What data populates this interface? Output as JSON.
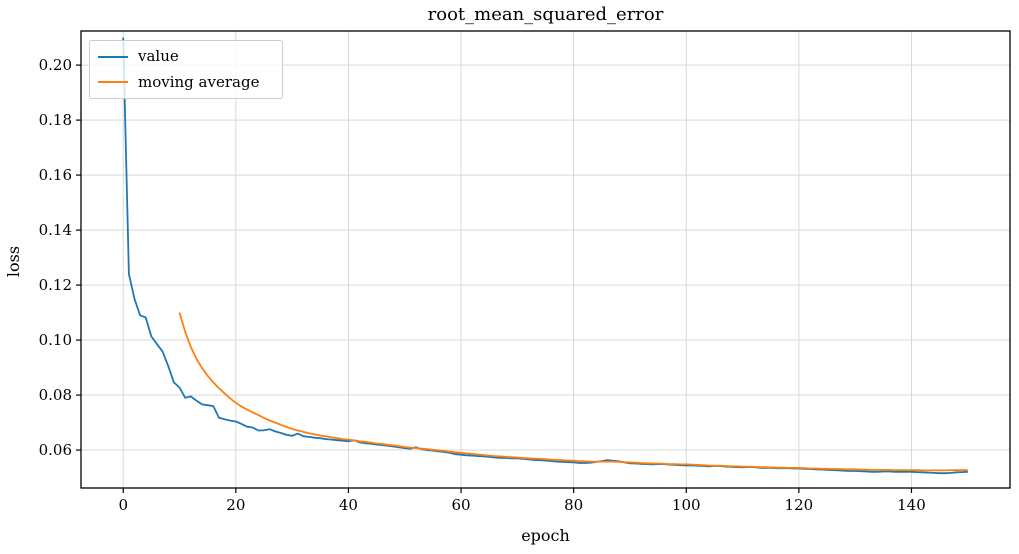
{
  "chart_data": {
    "type": "line",
    "title": "root_mean_squared_error",
    "xlabel": "epoch",
    "ylabel": "loss",
    "xlim": [
      -7.5,
      157.5
    ],
    "ylim": [
      0.0462,
      0.2124
    ],
    "x_ticks": [
      0,
      20,
      40,
      60,
      80,
      100,
      120,
      140
    ],
    "y_ticks": [
      0.06,
      0.08,
      0.1,
      0.12,
      0.14,
      0.16,
      0.18,
      0.2
    ],
    "grid": true,
    "grid_color": "#d9d9d9",
    "legend_position": "upper-left",
    "series": [
      {
        "name": "value",
        "color": "#1f77b4",
        "x0": 0,
        "dx": 1,
        "y": [
          0.21,
          0.124,
          0.115,
          0.109,
          0.1082,
          0.1013,
          0.0985,
          0.0958,
          0.0905,
          0.0846,
          0.0827,
          0.079,
          0.0795,
          0.078,
          0.0766,
          0.0763,
          0.076,
          0.0718,
          0.0712,
          0.0707,
          0.0704,
          0.0695,
          0.0685,
          0.0682,
          0.0671,
          0.0672,
          0.0676,
          0.0668,
          0.0662,
          0.0655,
          0.0652,
          0.066,
          0.065,
          0.0648,
          0.0645,
          0.0643,
          0.064,
          0.0638,
          0.0636,
          0.0634,
          0.0632,
          0.0636,
          0.0628,
          0.0625,
          0.0623,
          0.062,
          0.0618,
          0.0616,
          0.0613,
          0.061,
          0.0607,
          0.0605,
          0.061,
          0.0603,
          0.06,
          0.0598,
          0.0595,
          0.0593,
          0.059,
          0.0585,
          0.0583,
          0.0581,
          0.058,
          0.0578,
          0.0577,
          0.0575,
          0.0573,
          0.0572,
          0.0571,
          0.057,
          0.057,
          0.0568,
          0.0566,
          0.0564,
          0.0563,
          0.0562,
          0.056,
          0.0558,
          0.0557,
          0.0556,
          0.0555,
          0.0553,
          0.0553,
          0.0554,
          0.0557,
          0.056,
          0.0563,
          0.0561,
          0.0559,
          0.0555,
          0.0552,
          0.0551,
          0.055,
          0.0549,
          0.0548,
          0.0549,
          0.0549,
          0.0547,
          0.0546,
          0.0545,
          0.0544,
          0.0544,
          0.0543,
          0.0542,
          0.0541,
          0.0542,
          0.0542,
          0.054,
          0.0539,
          0.0538,
          0.0537,
          0.0538,
          0.0538,
          0.0536,
          0.0535,
          0.0535,
          0.0534,
          0.0534,
          0.0534,
          0.0533,
          0.0533,
          0.0532,
          0.0531,
          0.053,
          0.0529,
          0.0528,
          0.0527,
          0.0526,
          0.0525,
          0.0524,
          0.0524,
          0.0523,
          0.0522,
          0.0521,
          0.0521,
          0.0522,
          0.0522,
          0.0521,
          0.0521,
          0.0521,
          0.0521,
          0.052,
          0.0519,
          0.0518,
          0.0517,
          0.0516,
          0.0516,
          0.0517,
          0.0519,
          0.052,
          0.0521
        ]
      },
      {
        "name": "moving average",
        "color": "#ff7f0e",
        "x0": 10,
        "dx": 1,
        "y": [
          0.11,
          0.103,
          0.0975,
          0.0932,
          0.0898,
          0.087,
          0.0846,
          0.0825,
          0.0806,
          0.0788,
          0.0772,
          0.0758,
          0.0747,
          0.0737,
          0.0727,
          0.0717,
          0.0708,
          0.07,
          0.0692,
          0.0684,
          0.0677,
          0.0671,
          0.0666,
          0.0661,
          0.0657,
          0.0653,
          0.065,
          0.0646,
          0.0643,
          0.064,
          0.0638,
          0.0635,
          0.0632,
          0.063,
          0.0627,
          0.0624,
          0.0622,
          0.0619,
          0.0617,
          0.0614,
          0.0611,
          0.0609,
          0.0607,
          0.0605,
          0.0603,
          0.0601,
          0.0599,
          0.0597,
          0.0594,
          0.0592,
          0.059,
          0.0588,
          0.0586,
          0.0584,
          0.0582,
          0.058,
          0.0578,
          0.0577,
          0.0575,
          0.0574,
          0.0573,
          0.0571,
          0.057,
          0.0569,
          0.0568,
          0.0567,
          0.0565,
          0.0564,
          0.0563,
          0.0562,
          0.0561,
          0.056,
          0.0559,
          0.0558,
          0.0558,
          0.0558,
          0.0558,
          0.0558,
          0.0557,
          0.0556,
          0.0555,
          0.0554,
          0.0553,
          0.0552,
          0.0551,
          0.0551,
          0.055,
          0.0549,
          0.0549,
          0.0548,
          0.0548,
          0.0547,
          0.0546,
          0.0545,
          0.0544,
          0.0543,
          0.0543,
          0.0542,
          0.0541,
          0.0541,
          0.054,
          0.0539,
          0.0539,
          0.0538,
          0.0538,
          0.0537,
          0.0536,
          0.0536,
          0.0535,
          0.0535,
          0.0535,
          0.0534,
          0.0533,
          0.0533,
          0.0532,
          0.0532,
          0.0531,
          0.0531,
          0.053,
          0.053,
          0.053,
          0.0529,
          0.0529,
          0.0528,
          0.0528,
          0.0528,
          0.0528,
          0.0527,
          0.0527,
          0.0527,
          0.0527,
          0.0527,
          0.0526,
          0.0526,
          0.0526,
          0.0526,
          0.0526,
          0.0527,
          0.0527,
          0.0527,
          0.0527
        ]
      }
    ],
    "y_tick_format_decimals": 2
  },
  "colors": {
    "axes": "#000000",
    "background": "#ffffff",
    "value_line": "#1f77b4",
    "moving_average_line": "#ff7f0e"
  }
}
